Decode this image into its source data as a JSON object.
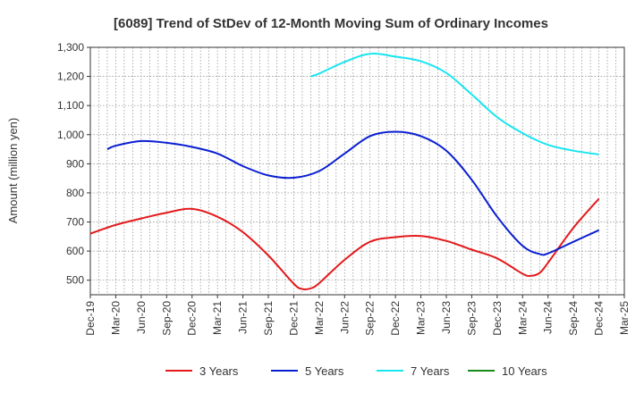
{
  "chart_data": {
    "type": "line",
    "title": "[6089]  Trend of StDev of 12-Month Moving Sum of Ordinary Incomes",
    "ylabel": "Amount (million yen)",
    "xlabel": "",
    "ylim": [
      450,
      1300
    ],
    "yticks": [
      500,
      600,
      700,
      800,
      900,
      1000,
      1100,
      1200,
      1300
    ],
    "ytick_labels": [
      "500",
      "600",
      "700",
      "800",
      "900",
      "1,000",
      "1,100",
      "1,200",
      "1,300"
    ],
    "x_categories": [
      "Dec-19",
      "Mar-20",
      "Jun-20",
      "Sep-20",
      "Dec-20",
      "Mar-21",
      "Jun-21",
      "Sep-21",
      "Dec-21",
      "Mar-22",
      "Jun-22",
      "Sep-22",
      "Dec-22",
      "Mar-23",
      "Jun-23",
      "Sep-23",
      "Dec-23",
      "Mar-24",
      "Jun-24",
      "Sep-24",
      "Dec-24",
      "Mar-25"
    ],
    "grid": true,
    "legend_position": "bottom",
    "series": [
      {
        "name": "3 Years",
        "color": "#e31a1c",
        "points": [
          [
            0,
            660
          ],
          [
            1,
            690
          ],
          [
            2,
            712
          ],
          [
            3,
            732
          ],
          [
            4,
            745
          ],
          [
            5,
            718
          ],
          [
            6,
            665
          ],
          [
            7,
            585
          ],
          [
            8,
            488
          ],
          [
            8.33,
            470
          ],
          [
            8.67,
            472
          ],
          [
            9,
            490
          ],
          [
            10,
            570
          ],
          [
            11,
            632
          ],
          [
            12,
            648
          ],
          [
            13,
            652
          ],
          [
            14,
            635
          ],
          [
            15,
            605
          ],
          [
            16,
            575
          ],
          [
            17,
            522
          ],
          [
            17.33,
            515
          ],
          [
            17.67,
            525
          ],
          [
            18,
            560
          ],
          [
            19,
            680
          ],
          [
            20,
            780
          ]
        ]
      },
      {
        "name": "5 Years",
        "color": "#0a1ed2",
        "points": [
          [
            0.67,
            950
          ],
          [
            1,
            962
          ],
          [
            2,
            978
          ],
          [
            3,
            972
          ],
          [
            4,
            958
          ],
          [
            5,
            935
          ],
          [
            6,
            892
          ],
          [
            7,
            860
          ],
          [
            8,
            852
          ],
          [
            9,
            875
          ],
          [
            10,
            935
          ],
          [
            11,
            995
          ],
          [
            12,
            1010
          ],
          [
            13,
            995
          ],
          [
            14,
            945
          ],
          [
            15,
            845
          ],
          [
            16,
            718
          ],
          [
            17,
            618
          ],
          [
            17.67,
            590
          ],
          [
            18,
            592
          ],
          [
            19,
            632
          ],
          [
            20,
            672
          ]
        ]
      },
      {
        "name": "7 Years",
        "color": "#19e5f0",
        "points": [
          [
            8.67,
            1200
          ],
          [
            9,
            1210
          ],
          [
            10,
            1250
          ],
          [
            11,
            1278
          ],
          [
            12,
            1268
          ],
          [
            13,
            1252
          ],
          [
            14,
            1212
          ],
          [
            15,
            1138
          ],
          [
            16,
            1060
          ],
          [
            17,
            1005
          ],
          [
            18,
            965
          ],
          [
            19,
            945
          ],
          [
            20,
            932
          ]
        ]
      },
      {
        "name": "10 Years",
        "color": "#1a8a1a",
        "points": []
      }
    ]
  }
}
